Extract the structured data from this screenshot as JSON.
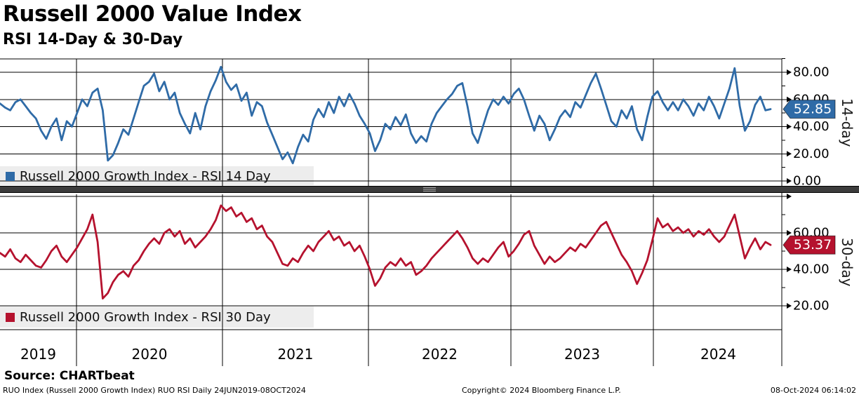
{
  "header": {
    "title": "Russell 2000 Value Index",
    "subtitle": "RSI 14-Day & 30-Day"
  },
  "source_line": "Source: CHARTbeat",
  "footer": {
    "left": "RUO Index (Russell 2000 Growth Index) RUO RSI  Daily 24JUN2019-08OCT2024",
    "center": "Copyright© 2024 Bloomberg Finance L.P.",
    "right": "08-Oct-2024 06:14:02"
  },
  "colors": {
    "rsi14": "#2F6BA7",
    "rsi30": "#B5122E",
    "grid": "#000000",
    "legend_bg": "#EDEDED",
    "divider": "#3C3C3C",
    "divider_grip": "#A9A9A9",
    "badge_text": "#FFFFFF"
  },
  "x_axis": {
    "year_labels": [
      "2019",
      "2020",
      "2021",
      "2022",
      "2023",
      "2024"
    ],
    "range_start": "24JUN2019",
    "range_end": "08OCT2024",
    "frequency": "Daily"
  },
  "chart_data": [
    {
      "type": "line",
      "panel": "top",
      "legend": "Russell 2000 Growth Index - RSI 14 Day",
      "axis_label": "14-day",
      "color_key": "rsi14",
      "last_value": 52.85,
      "last_value_label": "52.85",
      "ylim": [
        -3,
        90
      ],
      "y_ticks": [
        {
          "value": 80,
          "label": "80.00"
        },
        {
          "value": 60,
          "label": "60.00"
        },
        {
          "value": 40,
          "label": "40.00"
        },
        {
          "value": 20,
          "label": "20.00"
        },
        {
          "value": 0,
          "label": "0.00"
        }
      ],
      "y_minor_ticks": [
        90,
        70,
        50,
        30,
        10
      ],
      "values": [
        57,
        54,
        52,
        58,
        60,
        55,
        50,
        46,
        37,
        31,
        40,
        46,
        30,
        44,
        40,
        50,
        60,
        55,
        65,
        68,
        52,
        15,
        19,
        28,
        38,
        34,
        46,
        58,
        70,
        73,
        79,
        66,
        73,
        60,
        65,
        50,
        42,
        35,
        50,
        38,
        55,
        66,
        74,
        84,
        73,
        67,
        71,
        59,
        65,
        48,
        58,
        55,
        43,
        34,
        25,
        16,
        21,
        13,
        25,
        34,
        29,
        45,
        53,
        47,
        58,
        50,
        62,
        55,
        64,
        57,
        48,
        42,
        35,
        22,
        30,
        42,
        38,
        47,
        41,
        49,
        35,
        28,
        33,
        29,
        42,
        50,
        55,
        60,
        64,
        70,
        72,
        55,
        35,
        28,
        40,
        52,
        60,
        56,
        62,
        57,
        64,
        68,
        60,
        48,
        37,
        48,
        42,
        30,
        38,
        47,
        52,
        47,
        58,
        54,
        63,
        72,
        79,
        68,
        56,
        44,
        40,
        52,
        46,
        55,
        38,
        30,
        47,
        62,
        66,
        58,
        52,
        58,
        52,
        60,
        55,
        48,
        57,
        52,
        62,
        55,
        46,
        57,
        68,
        83,
        55,
        37,
        44,
        56,
        62,
        52,
        52.85
      ]
    },
    {
      "type": "line",
      "panel": "bottom",
      "legend": "Russell 2000 Growth Index - RSI 30 Day",
      "axis_label": "30-day",
      "color_key": "rsi30",
      "last_value": 53.37,
      "last_value_label": "53.37",
      "ylim": [
        7,
        81
      ],
      "y_ticks": [
        {
          "value": 80,
          "label": ""
        },
        {
          "value": 60,
          "label": "60.00"
        },
        {
          "value": 40,
          "label": "40.00"
        },
        {
          "value": 20,
          "label": "20.00"
        }
      ],
      "y_minor_ticks": [
        70,
        50,
        30
      ],
      "values": [
        49,
        47,
        51,
        46,
        44,
        48,
        45,
        42,
        41,
        45,
        50,
        53,
        47,
        44,
        48,
        52,
        57,
        62,
        70,
        55,
        24,
        27,
        33,
        37,
        39,
        36,
        42,
        45,
        50,
        54,
        57,
        54,
        60,
        62,
        58,
        61,
        54,
        57,
        52,
        55,
        58,
        62,
        67,
        75,
        72,
        74,
        69,
        71,
        66,
        68,
        62,
        64,
        58,
        55,
        49,
        43,
        42,
        46,
        44,
        49,
        53,
        50,
        55,
        58,
        61,
        56,
        58,
        53,
        55,
        50,
        53,
        47,
        40,
        31,
        35,
        41,
        44,
        42,
        46,
        42,
        44,
        37,
        39,
        42,
        46,
        49,
        52,
        55,
        58,
        61,
        57,
        52,
        46,
        43,
        46,
        44,
        48,
        52,
        55,
        47,
        50,
        54,
        59,
        61,
        53,
        48,
        43,
        47,
        44,
        46,
        49,
        52,
        50,
        54,
        52,
        56,
        60,
        64,
        66,
        60,
        54,
        48,
        44,
        39,
        32,
        38,
        45,
        56,
        68,
        63,
        65,
        61,
        63,
        60,
        62,
        58,
        61,
        59,
        62,
        58,
        55,
        58,
        64,
        70,
        58,
        46,
        52,
        57,
        51,
        55,
        53.37
      ]
    }
  ]
}
